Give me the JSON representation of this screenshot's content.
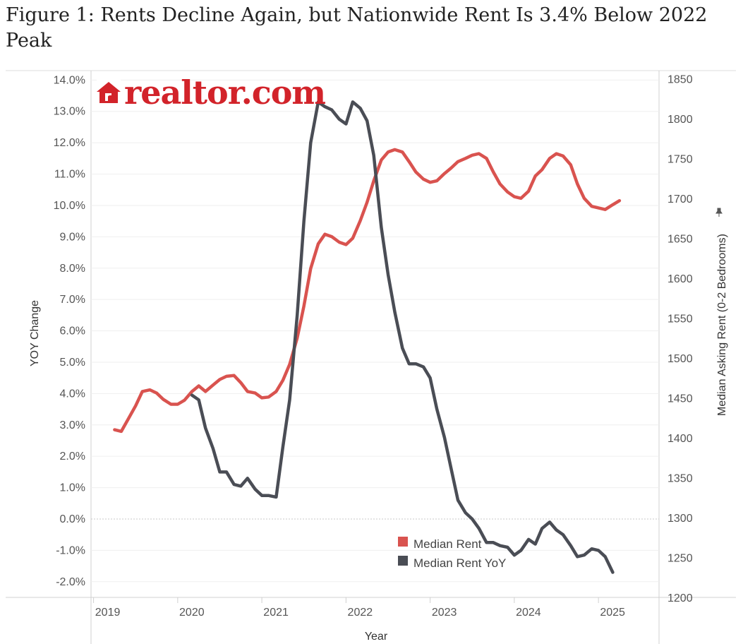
{
  "figure_title": "Figure 1: Rents Decline Again, but Nationwide Rent Is 3.4% Below 2022 Peak",
  "logo": {
    "text": "realtor.com",
    "color": "#d2232a"
  },
  "chart_data": {
    "type": "line",
    "xlabel": "Year",
    "ylabel_left": "YOY Change",
    "ylabel_right": "Median Asking Rent (0-2 Bedrooms)",
    "x_ticks": [
      "2019",
      "2020",
      "2021",
      "2022",
      "2023",
      "2024",
      "2025"
    ],
    "y_left_ticks": [
      "14.0%",
      "13.0%",
      "12.0%",
      "11.0%",
      "10.0%",
      "9.0%",
      "8.0%",
      "7.0%",
      "6.0%",
      "5.0%",
      "4.0%",
      "3.0%",
      "2.0%",
      "1.0%",
      "0.0%",
      "-1.0%",
      "-2.0%"
    ],
    "y_right_ticks": [
      "1850",
      "1800",
      "1750",
      "1700",
      "1650",
      "1600",
      "1550",
      "1500",
      "1450",
      "1400",
      "1350",
      "1300",
      "1250",
      "1200"
    ],
    "ylim_left": [
      -2.5,
      14.3
    ],
    "ylim_right": [
      1200,
      1860
    ],
    "x_range": [
      2018.97,
      2025.72
    ],
    "grid": "horizontal",
    "legend_position": "bottom-center",
    "series": [
      {
        "name": "Median Rent",
        "axis": "right",
        "color": "#d9534f",
        "points": [
          [
            2019.25,
            1410
          ],
          [
            2019.33,
            1408
          ],
          [
            2019.42,
            1425
          ],
          [
            2019.5,
            1440
          ],
          [
            2019.58,
            1458
          ],
          [
            2019.67,
            1460
          ],
          [
            2019.75,
            1456
          ],
          [
            2019.83,
            1448
          ],
          [
            2019.92,
            1442
          ],
          [
            2020.0,
            1442
          ],
          [
            2020.08,
            1447
          ],
          [
            2020.17,
            1458
          ],
          [
            2020.25,
            1465
          ],
          [
            2020.33,
            1458
          ],
          [
            2020.42,
            1466
          ],
          [
            2020.5,
            1473
          ],
          [
            2020.58,
            1477
          ],
          [
            2020.67,
            1478
          ],
          [
            2020.75,
            1469
          ],
          [
            2020.83,
            1458
          ],
          [
            2020.92,
            1456
          ],
          [
            2021.0,
            1450
          ],
          [
            2021.08,
            1451
          ],
          [
            2021.17,
            1458
          ],
          [
            2021.25,
            1472
          ],
          [
            2021.33,
            1492
          ],
          [
            2021.42,
            1525
          ],
          [
            2021.5,
            1565
          ],
          [
            2021.58,
            1612
          ],
          [
            2021.67,
            1643
          ],
          [
            2021.75,
            1655
          ],
          [
            2021.83,
            1652
          ],
          [
            2021.92,
            1645
          ],
          [
            2022.0,
            1642
          ],
          [
            2022.08,
            1650
          ],
          [
            2022.17,
            1672
          ],
          [
            2022.25,
            1695
          ],
          [
            2022.33,
            1722
          ],
          [
            2022.42,
            1748
          ],
          [
            2022.5,
            1758
          ],
          [
            2022.58,
            1761
          ],
          [
            2022.67,
            1758
          ],
          [
            2022.75,
            1746
          ],
          [
            2022.83,
            1733
          ],
          [
            2022.92,
            1724
          ],
          [
            2023.0,
            1720
          ],
          [
            2023.08,
            1722
          ],
          [
            2023.17,
            1731
          ],
          [
            2023.25,
            1738
          ],
          [
            2023.33,
            1746
          ],
          [
            2023.42,
            1750
          ],
          [
            2023.5,
            1754
          ],
          [
            2023.58,
            1756
          ],
          [
            2023.67,
            1750
          ],
          [
            2023.75,
            1733
          ],
          [
            2023.83,
            1718
          ],
          [
            2023.92,
            1708
          ],
          [
            2024.0,
            1702
          ],
          [
            2024.08,
            1700
          ],
          [
            2024.17,
            1709
          ],
          [
            2024.25,
            1728
          ],
          [
            2024.33,
            1736
          ],
          [
            2024.42,
            1750
          ],
          [
            2024.5,
            1756
          ],
          [
            2024.58,
            1753
          ],
          [
            2024.67,
            1742
          ],
          [
            2024.75,
            1718
          ],
          [
            2024.83,
            1700
          ],
          [
            2024.92,
            1690
          ],
          [
            2025.0,
            1688
          ],
          [
            2025.08,
            1686
          ],
          [
            2025.17,
            1692
          ],
          [
            2025.25,
            1697
          ]
        ]
      },
      {
        "name": "Median Rent YoY",
        "axis": "left",
        "color": "#4a4d55",
        "points": [
          [
            2020.17,
            3.95
          ],
          [
            2020.25,
            3.8
          ],
          [
            2020.33,
            2.9
          ],
          [
            2020.42,
            2.25
          ],
          [
            2020.5,
            1.5
          ],
          [
            2020.58,
            1.5
          ],
          [
            2020.67,
            1.1
          ],
          [
            2020.75,
            1.05
          ],
          [
            2020.83,
            1.3
          ],
          [
            2020.92,
            0.95
          ],
          [
            2021.0,
            0.75
          ],
          [
            2021.08,
            0.75
          ],
          [
            2021.17,
            0.7
          ],
          [
            2021.25,
            2.3
          ],
          [
            2021.33,
            3.8
          ],
          [
            2021.42,
            6.5
          ],
          [
            2021.5,
            9.5
          ],
          [
            2021.58,
            12.0
          ],
          [
            2021.67,
            13.3
          ],
          [
            2021.75,
            13.15
          ],
          [
            2021.83,
            13.05
          ],
          [
            2021.92,
            12.75
          ],
          [
            2022.0,
            12.6
          ],
          [
            2022.08,
            13.3
          ],
          [
            2022.17,
            13.1
          ],
          [
            2022.25,
            12.7
          ],
          [
            2022.33,
            11.6
          ],
          [
            2022.42,
            9.3
          ],
          [
            2022.5,
            7.8
          ],
          [
            2022.58,
            6.6
          ],
          [
            2022.67,
            5.45
          ],
          [
            2022.75,
            4.95
          ],
          [
            2022.83,
            4.95
          ],
          [
            2022.92,
            4.85
          ],
          [
            2023.0,
            4.5
          ],
          [
            2023.08,
            3.5
          ],
          [
            2023.17,
            2.6
          ],
          [
            2023.25,
            1.6
          ],
          [
            2023.33,
            0.6
          ],
          [
            2023.42,
            0.2
          ],
          [
            2023.5,
            0.0
          ],
          [
            2023.58,
            -0.3
          ],
          [
            2023.67,
            -0.75
          ],
          [
            2023.75,
            -0.75
          ],
          [
            2023.83,
            -0.85
          ],
          [
            2023.92,
            -0.9
          ],
          [
            2024.0,
            -1.15
          ],
          [
            2024.08,
            -1.0
          ],
          [
            2024.17,
            -0.65
          ],
          [
            2024.25,
            -0.8
          ],
          [
            2024.33,
            -0.3
          ],
          [
            2024.42,
            -0.1
          ],
          [
            2024.5,
            -0.35
          ],
          [
            2024.58,
            -0.5
          ],
          [
            2024.67,
            -0.85
          ],
          [
            2024.75,
            -1.2
          ],
          [
            2024.83,
            -1.15
          ],
          [
            2024.92,
            -0.95
          ],
          [
            2025.0,
            -1.0
          ],
          [
            2025.08,
            -1.2
          ],
          [
            2025.17,
            -1.7
          ]
        ]
      }
    ]
  }
}
